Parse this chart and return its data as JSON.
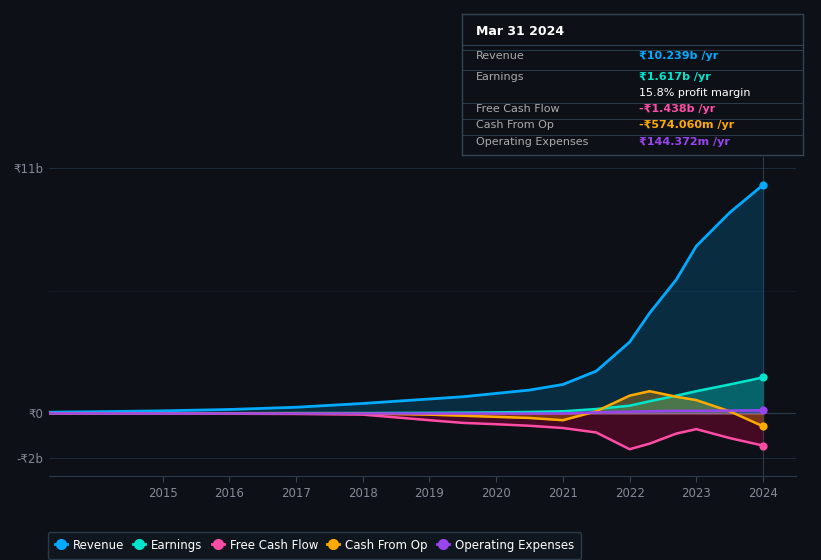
{
  "background_color": "#0d1117",
  "plot_bg_color": "#0d1117",
  "grid_color": "#1e2a3a",
  "years": [
    2013,
    2014,
    2015,
    2016,
    2017,
    2018,
    2019,
    2019.5,
    2020,
    2020.5,
    2021,
    2021.5,
    2022,
    2022.3,
    2022.7,
    2023,
    2023.5,
    2024
  ],
  "revenue": [
    0.05,
    0.08,
    0.12,
    0.18,
    0.28,
    0.45,
    0.65,
    0.75,
    0.9,
    1.05,
    1.3,
    1.9,
    3.2,
    4.5,
    6.0,
    7.5,
    9.0,
    10.239
  ],
  "earnings": [
    0.0,
    0.0,
    0.01,
    0.01,
    0.02,
    0.02,
    0.03,
    0.04,
    0.05,
    0.07,
    0.1,
    0.2,
    0.35,
    0.55,
    0.8,
    1.0,
    1.3,
    1.617
  ],
  "free_cash_flow": [
    0.0,
    0.0,
    0.0,
    -0.01,
    -0.02,
    -0.05,
    -0.3,
    -0.42,
    -0.48,
    -0.55,
    -0.65,
    -0.85,
    -1.6,
    -1.35,
    -0.9,
    -0.7,
    -1.1,
    -1.438
  ],
  "cash_from_op": [
    0.0,
    0.0,
    0.01,
    0.01,
    0.01,
    0.0,
    -0.05,
    -0.1,
    -0.15,
    -0.2,
    -0.3,
    0.1,
    0.8,
    1.0,
    0.75,
    0.6,
    0.1,
    -0.574
  ],
  "operating_expenses": [
    0.0,
    0.0,
    0.0,
    0.0,
    0.0,
    0.0,
    0.0,
    0.0,
    0.0,
    0.0,
    0.0,
    0.05,
    0.08,
    0.1,
    0.12,
    0.12,
    0.13,
    0.144
  ],
  "revenue_color": "#00aaff",
  "earnings_color": "#00e5cc",
  "free_cash_flow_color": "#ff4da6",
  "cash_from_op_color": "#ffaa00",
  "operating_expenses_color": "#9944ee",
  "ylim_top": 11.5,
  "ylim_bottom": -2.8,
  "xticks": [
    2015,
    2016,
    2017,
    2018,
    2019,
    2020,
    2021,
    2022,
    2023,
    2024
  ],
  "tooltip_title": "Mar 31 2024",
  "tooltip_revenue": "₹10.239b",
  "tooltip_earnings": "₹1.617b",
  "tooltip_profit_margin": "15.8%",
  "tooltip_fcf": "-₹1.438b",
  "tooltip_cfop": "-₹574.060m",
  "tooltip_opex": "₹144.372m"
}
